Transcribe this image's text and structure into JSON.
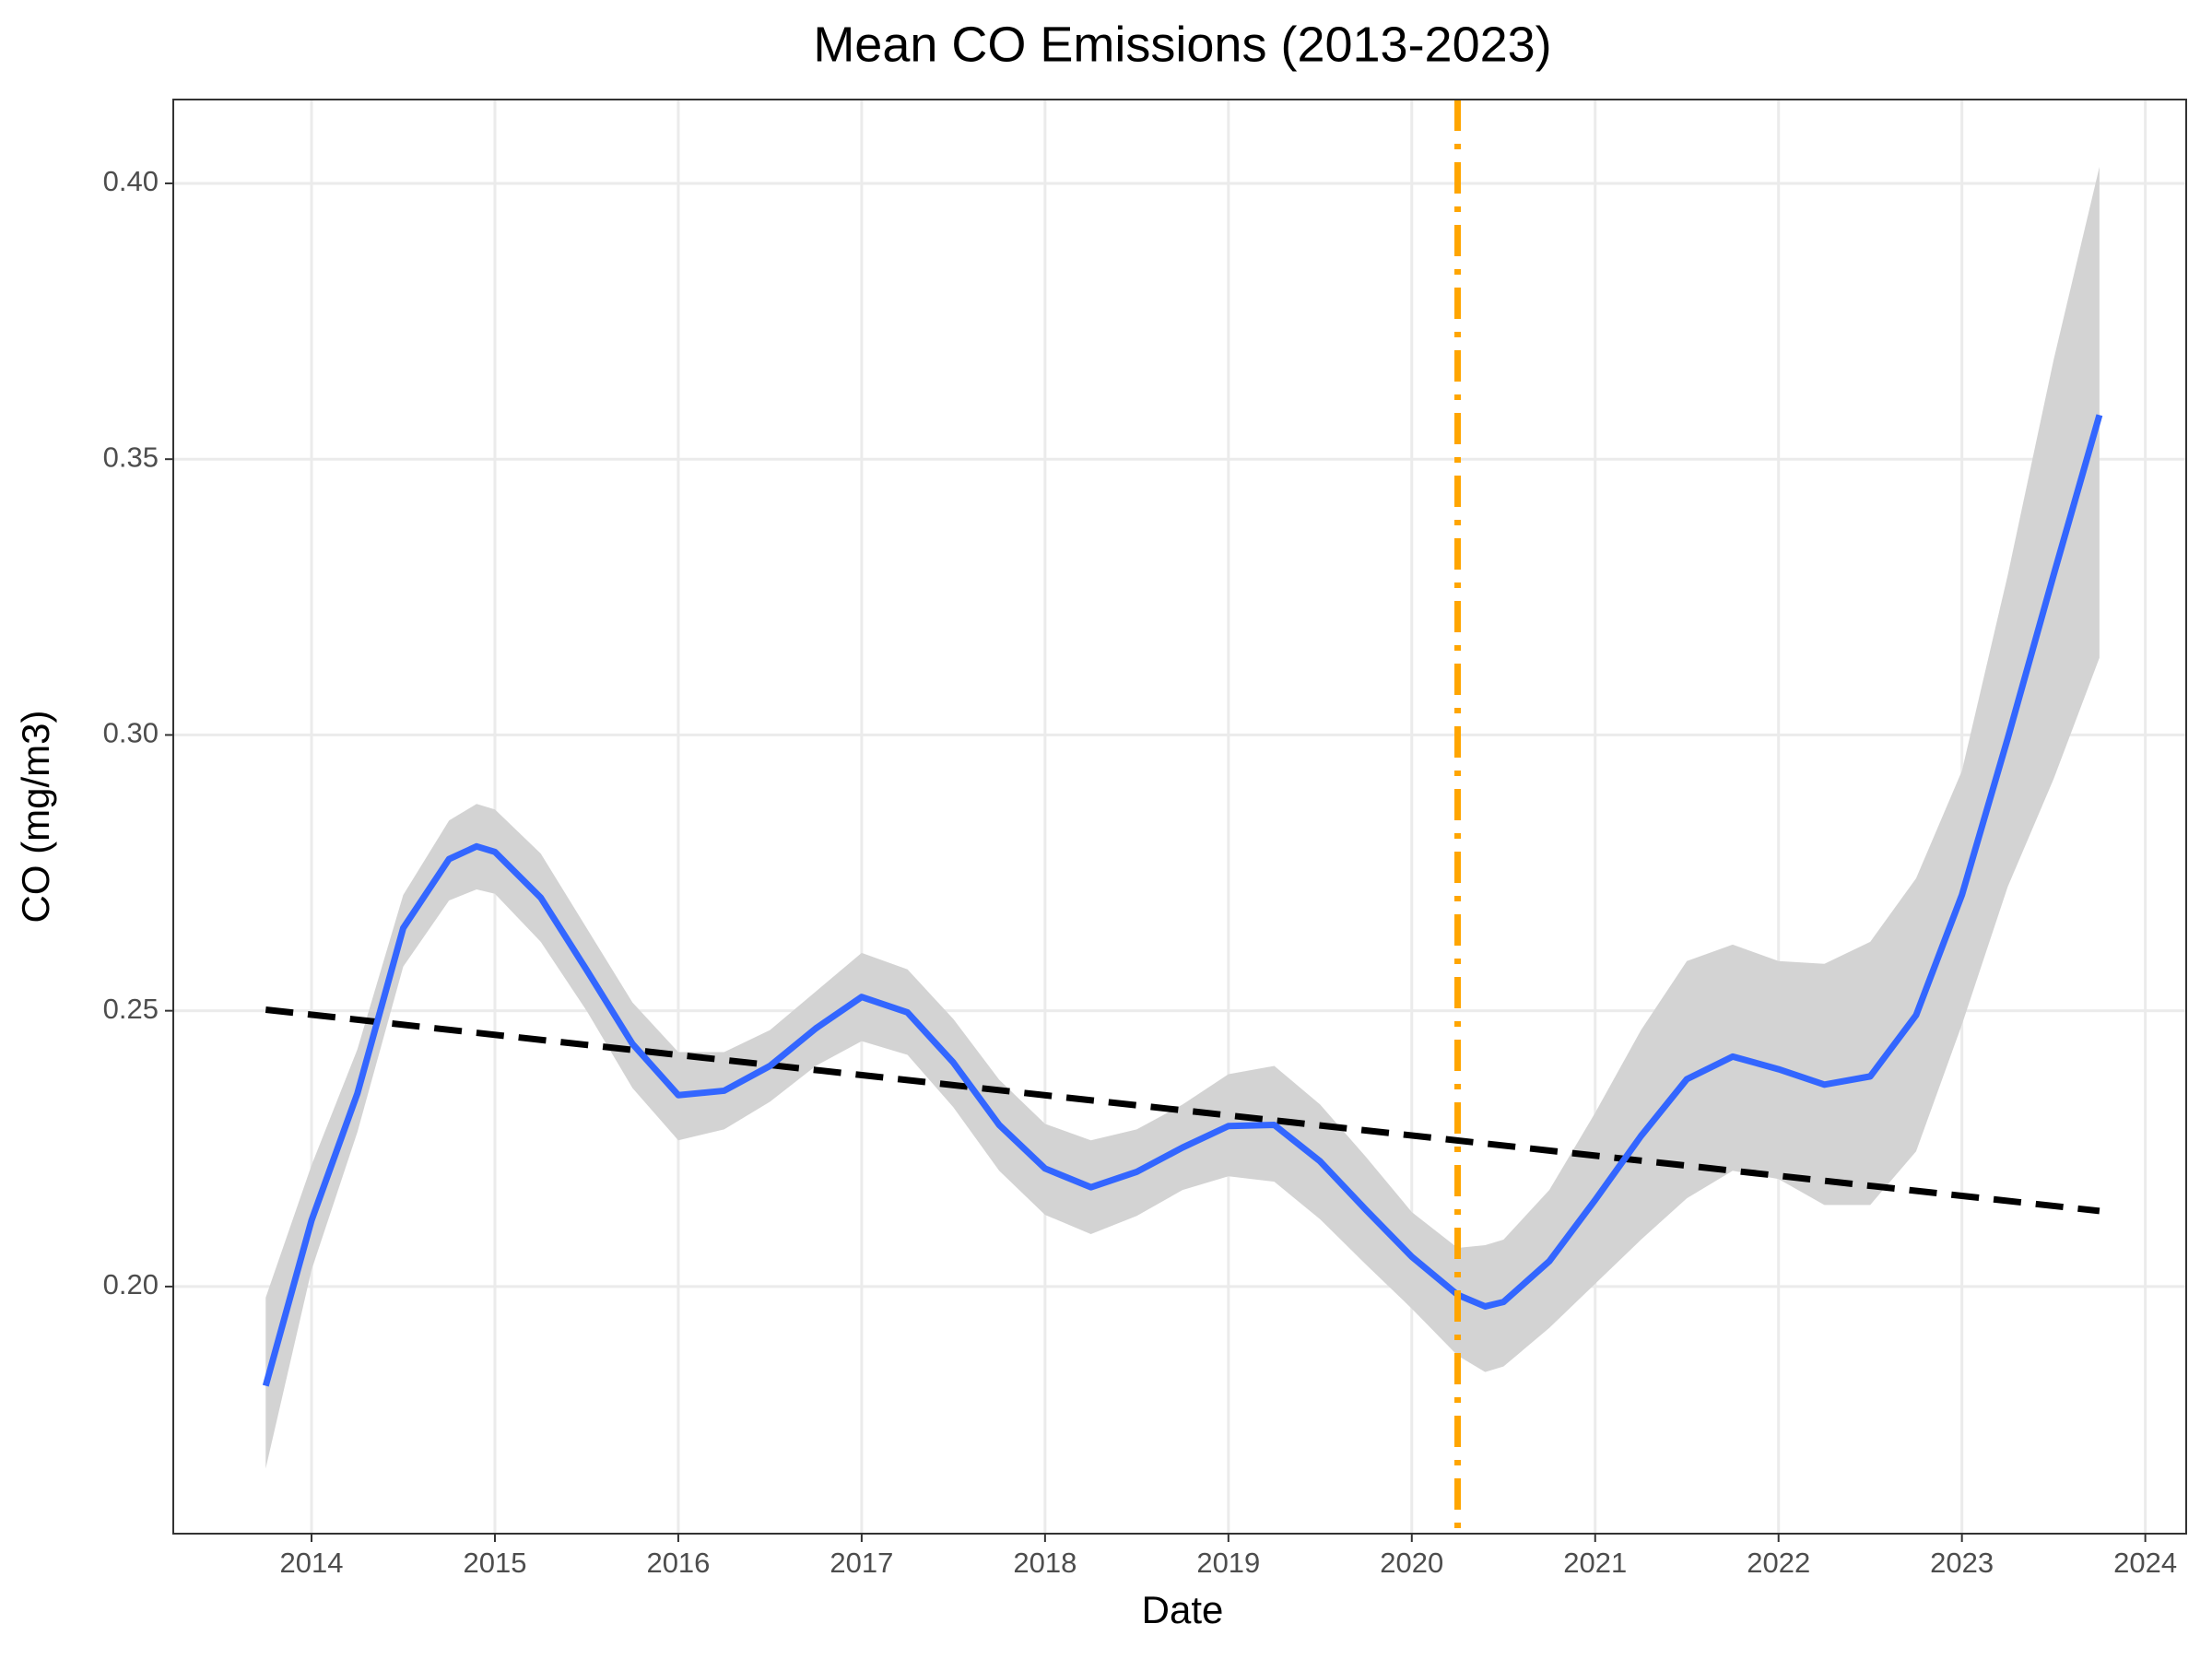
{
  "chart_data": {
    "type": "line",
    "title": "Mean CO Emissions (2013-2023)",
    "x_label": "Date",
    "y_label": "CO (mg/m3)",
    "x": [
      2013.75,
      2014.0,
      2014.25,
      2014.5,
      2014.75,
      2014.9,
      2015.0,
      2015.25,
      2015.5,
      2015.75,
      2016.0,
      2016.25,
      2016.5,
      2016.75,
      2017.0,
      2017.25,
      2017.5,
      2017.75,
      2018.0,
      2018.25,
      2018.5,
      2018.75,
      2019.0,
      2019.25,
      2019.5,
      2019.75,
      2020.0,
      2020.25,
      2020.4,
      2020.5,
      2020.75,
      2021.0,
      2021.25,
      2021.5,
      2021.75,
      2022.0,
      2022.25,
      2022.5,
      2022.75,
      2023.0,
      2023.25,
      2023.5,
      2023.75
    ],
    "series": [
      {
        "color": "#3366FF",
        "values": [
          0.182,
          0.212,
          0.235,
          0.265,
          0.2775,
          0.2798,
          0.2788,
          0.2705,
          0.2574,
          0.244,
          0.2347,
          0.2355,
          0.24,
          0.2468,
          0.2525,
          0.2497,
          0.2406,
          0.2293,
          0.2214,
          0.218,
          0.2208,
          0.2252,
          0.2291,
          0.2293,
          0.2227,
          0.2139,
          0.2054,
          0.1985,
          0.1964,
          0.1972,
          0.2046,
          0.2157,
          0.2273,
          0.2376,
          0.2417,
          0.2394,
          0.2366,
          0.2381,
          0.2492,
          0.271,
          0.2994,
          0.329,
          0.358
        ]
      }
    ],
    "band": {
      "color": "#D3D3D3",
      "upper": [
        0.198,
        0.222,
        0.243,
        0.271,
        0.2845,
        0.2875,
        0.2865,
        0.2785,
        0.265,
        0.2515,
        0.2425,
        0.2425,
        0.2465,
        0.2535,
        0.2605,
        0.2575,
        0.2485,
        0.2375,
        0.2295,
        0.2265,
        0.2285,
        0.233,
        0.2385,
        0.24,
        0.233,
        0.2235,
        0.2135,
        0.207,
        0.2075,
        0.2085,
        0.2175,
        0.2315,
        0.2465,
        0.259,
        0.262,
        0.259,
        0.2585,
        0.2625,
        0.274,
        0.2935,
        0.329,
        0.368,
        0.403
      ],
      "lower": [
        0.167,
        0.203,
        0.228,
        0.258,
        0.27,
        0.272,
        0.2712,
        0.2625,
        0.25,
        0.236,
        0.2265,
        0.2285,
        0.2335,
        0.24,
        0.2445,
        0.242,
        0.2325,
        0.221,
        0.213,
        0.2095,
        0.2128,
        0.2175,
        0.22,
        0.219,
        0.2122,
        0.204,
        0.196,
        0.1875,
        0.1845,
        0.1855,
        0.1925,
        0.2005,
        0.2085,
        0.216,
        0.221,
        0.2195,
        0.2148,
        0.2148,
        0.2245,
        0.2475,
        0.2725,
        0.292,
        0.314
      ]
    },
    "trend_line": {
      "color": "#000000",
      "x": [
        2013.75,
        2023.75
      ],
      "values": [
        0.2502,
        0.2137
      ]
    },
    "vline": {
      "color": "#FFA500",
      "x": 2020.25
    },
    "xlim": [
      2013.246,
      2024.223
    ],
    "ylim": [
      0.1552,
      0.4152
    ],
    "xticks": [
      2014,
      2015,
      2016,
      2017,
      2018,
      2019,
      2020,
      2021,
      2022,
      2023,
      2024
    ],
    "yticks": [
      {
        "value": 0.2,
        "label": "0.20"
      },
      0.25,
      {
        "value": 0.3,
        "label": "0.30"
      },
      0.35,
      {
        "value": 0.4,
        "label": "0.40"
      }
    ],
    "grid": true
  }
}
